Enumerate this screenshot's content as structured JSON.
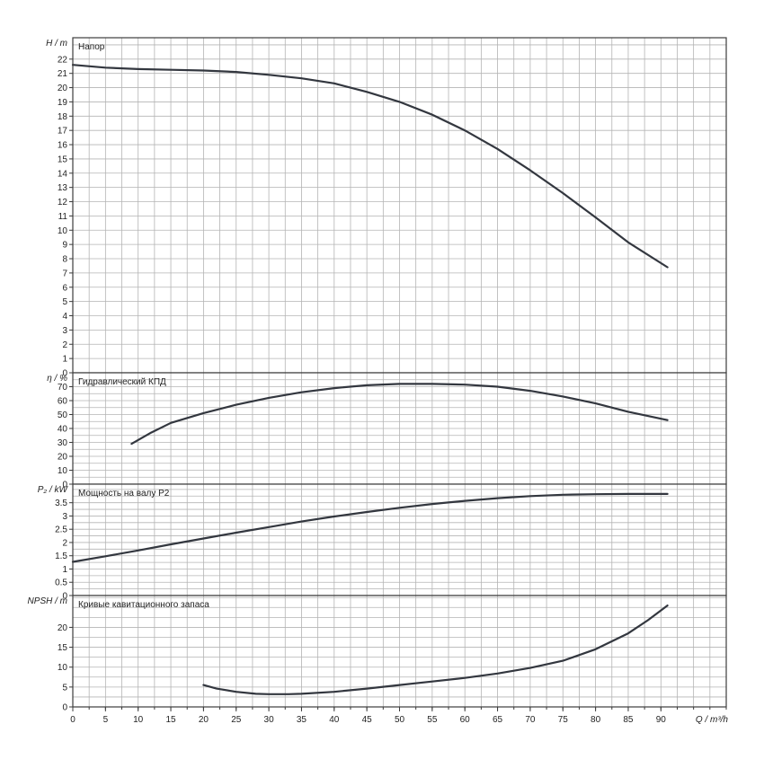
{
  "chart_data": {
    "type": "line",
    "x_axis": {
      "label": "Q / m³/h",
      "range": [
        0,
        100
      ],
      "ticks": [
        0,
        5,
        10,
        15,
        20,
        25,
        30,
        35,
        40,
        45,
        50,
        55,
        60,
        65,
        70,
        75,
        80,
        85,
        90
      ],
      "minor_step": 2.5
    },
    "grid": true,
    "colors": {
      "curve": "#33373f",
      "grid": "#b4b4b4",
      "frame": "#3c3c3c",
      "text": "#222222"
    },
    "panels": [
      {
        "id": "head",
        "title": "Напор",
        "ylabel": "H / m",
        "ylim": [
          0,
          23.5
        ],
        "yticks": [
          0,
          1,
          2,
          3,
          4,
          5,
          6,
          7,
          8,
          9,
          10,
          11,
          12,
          13,
          14,
          15,
          16,
          17,
          18,
          19,
          20,
          21,
          22
        ],
        "ygrid_step": 1,
        "series": [
          {
            "x": [
              0,
              5,
              10,
              15,
              20,
              25,
              30,
              35,
              40,
              45,
              50,
              55,
              60,
              65,
              70,
              75,
              80,
              85,
              91
            ],
            "y": [
              21.6,
              21.4,
              21.3,
              21.25,
              21.2,
              21.1,
              20.9,
              20.65,
              20.3,
              19.7,
              19.0,
              18.1,
              17.0,
              15.7,
              14.2,
              12.6,
              10.9,
              9.15,
              7.4
            ]
          }
        ]
      },
      {
        "id": "efficiency",
        "title": "Гидравлический КПД",
        "ylabel": "η / %",
        "ylim": [
          0,
          80
        ],
        "yticks": [
          0,
          10,
          20,
          30,
          40,
          50,
          60,
          70
        ],
        "ygrid_step": 5,
        "series": [
          {
            "x": [
              9,
              12,
              15,
              20,
              25,
              30,
              35,
              40,
              45,
              50,
              55,
              60,
              65,
              70,
              75,
              80,
              85,
              91
            ],
            "y": [
              29,
              37,
              44,
              51,
              57,
              62,
              66,
              69,
              71,
              72,
              72,
              71.5,
              70,
              67,
              63,
              58,
              52,
              46
            ]
          }
        ]
      },
      {
        "id": "power",
        "title": "Мощность на валу P2",
        "ylabel": "P₂ / kW",
        "ylim": [
          0,
          4.2
        ],
        "yticks": [
          0,
          0.5,
          1,
          1.5,
          2,
          2.5,
          3,
          3.5
        ],
        "ygrid_step": 0.25,
        "series": [
          {
            "x": [
              0,
              5,
              10,
              15,
              20,
              25,
              30,
              35,
              40,
              45,
              50,
              55,
              60,
              65,
              70,
              75,
              80,
              85,
              91
            ],
            "y": [
              1.27,
              1.48,
              1.7,
              1.93,
              2.15,
              2.37,
              2.58,
              2.79,
              2.98,
              3.15,
              3.31,
              3.45,
              3.57,
              3.67,
              3.75,
              3.8,
              3.82,
              3.83,
              3.83
            ]
          }
        ]
      },
      {
        "id": "npsh",
        "title": "Кривые кавитационного запаса",
        "ylabel": "NPSH / m",
        "ylim": [
          0,
          28
        ],
        "yticks": [
          0,
          5,
          10,
          15,
          20
        ],
        "ygrid_step": 2.5,
        "series": [
          {
            "x": [
              20,
              22,
              25,
              28,
              30,
              33,
              35,
              40,
              45,
              50,
              55,
              60,
              65,
              70,
              75,
              80,
              85,
              88,
              91
            ],
            "y": [
              5.5,
              4.6,
              3.8,
              3.3,
              3.2,
              3.2,
              3.3,
              3.8,
              4.6,
              5.5,
              6.4,
              7.3,
              8.4,
              9.8,
              11.6,
              14.5,
              18.5,
              21.8,
              25.5
            ]
          }
        ]
      }
    ]
  }
}
